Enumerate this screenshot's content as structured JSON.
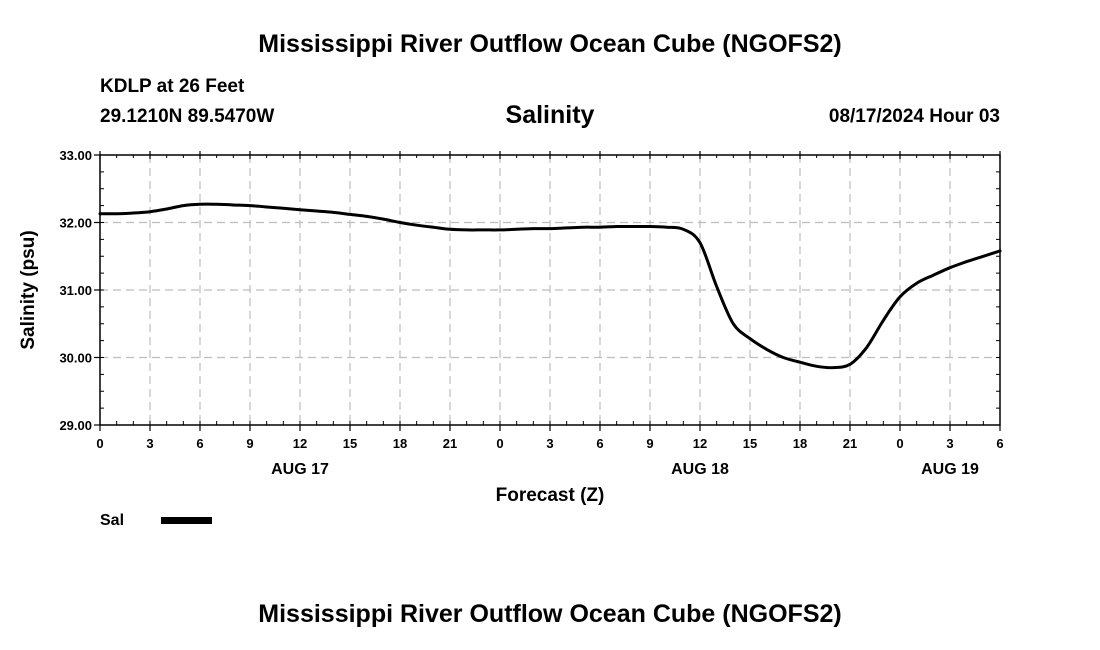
{
  "page": {
    "title_top": "Mississippi River Outflow Ocean Cube (NGOFS2)",
    "title_bottom": "Mississippi River Outflow Ocean Cube (NGOFS2)",
    "station": "KDLP at 26 Feet",
    "coords": "29.1210N  89.5470W",
    "datetime": "08/17/2024 Hour 03"
  },
  "chart_data": {
    "type": "line",
    "title": "Salinity",
    "xlabel": "Forecast (Z)",
    "ylabel": "Salinity (psu)",
    "ylim": [
      29,
      33
    ],
    "xlim": [
      0,
      54
    ],
    "yticks": [
      "29.00",
      "30.00",
      "31.00",
      "32.00",
      "33.00"
    ],
    "yticks_values": [
      29,
      30,
      31,
      32,
      33
    ],
    "xticks": [
      "0",
      "3",
      "6",
      "9",
      "12",
      "15",
      "18",
      "21",
      "0",
      "3",
      "6",
      "9",
      "12",
      "15",
      "18",
      "21",
      "0",
      "3",
      "6"
    ],
    "day_labels": [
      {
        "label": "AUG 17",
        "hour": 12
      },
      {
        "label": "AUG 18",
        "hour": 36
      },
      {
        "label": "AUG 19",
        "hour": 51
      }
    ],
    "grid": true,
    "legend": [
      {
        "name": "Sal",
        "color": "#000000"
      }
    ],
    "series": [
      {
        "name": "Sal",
        "color": "#000000",
        "x": [
          0,
          1,
          2,
          3,
          4,
          5,
          6,
          7,
          8,
          9,
          10,
          11,
          12,
          13,
          14,
          15,
          16,
          17,
          18,
          19,
          20,
          21,
          22,
          23,
          24,
          25,
          26,
          27,
          28,
          29,
          30,
          31,
          32,
          33,
          34,
          35,
          36,
          37,
          38,
          39,
          40,
          41,
          42,
          43,
          44,
          45,
          46,
          47,
          48,
          49,
          50,
          51,
          52,
          53,
          54
        ],
        "values": [
          32.13,
          32.13,
          32.14,
          32.16,
          32.2,
          32.25,
          32.27,
          32.27,
          32.26,
          32.25,
          32.23,
          32.21,
          32.19,
          32.17,
          32.15,
          32.12,
          32.09,
          32.05,
          32.0,
          31.96,
          31.93,
          31.9,
          31.89,
          31.89,
          31.89,
          31.9,
          31.91,
          31.91,
          31.92,
          31.93,
          31.93,
          31.94,
          31.94,
          31.94,
          31.93,
          31.9,
          31.7,
          31.05,
          30.5,
          30.28,
          30.12,
          30.0,
          29.93,
          29.87,
          29.85,
          29.9,
          30.15,
          30.55,
          30.9,
          31.1,
          31.22,
          31.33,
          31.42,
          31.5,
          31.58
        ]
      }
    ]
  }
}
